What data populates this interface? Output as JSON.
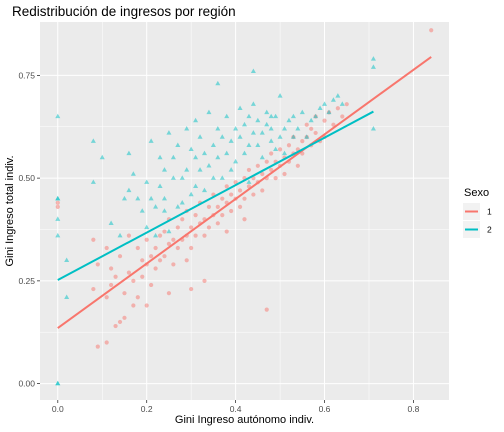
{
  "chart_data": {
    "type": "scatter",
    "title": "Redistribución de ingresos por región",
    "xlabel": "Gini Ingreso autónomo indiv.",
    "ylabel": "Gini Ingreso total indiv.",
    "xlim": [
      -0.04,
      0.88
    ],
    "ylim": [
      -0.04,
      0.88
    ],
    "x_ticks": [
      0.0,
      0.2,
      0.4,
      0.6,
      0.8
    ],
    "x_tick_labels": [
      "0.0",
      "0.2",
      "0.4",
      "0.6",
      "0.8"
    ],
    "y_ticks": [
      0.0,
      0.25,
      0.5,
      0.75
    ],
    "y_tick_labels": [
      "0.00",
      "0.25",
      "0.50",
      "0.75"
    ],
    "grid": true,
    "legend": {
      "title": "Sexo",
      "placement": "right",
      "entries": [
        {
          "label": "1",
          "color": "#F8766D"
        },
        {
          "label": "2",
          "color": "#00BFC4"
        }
      ]
    },
    "series": [
      {
        "name": "1",
        "color": "#F8766D",
        "marker": "circle",
        "points": [
          [
            0.0,
            0.44
          ],
          [
            0.0,
            0.43
          ],
          [
            0.08,
            0.23
          ],
          [
            0.08,
            0.35
          ],
          [
            0.09,
            0.09
          ],
          [
            0.09,
            0.29
          ],
          [
            0.11,
            0.21
          ],
          [
            0.11,
            0.33
          ],
          [
            0.12,
            0.24
          ],
          [
            0.12,
            0.28
          ],
          [
            0.13,
            0.14
          ],
          [
            0.13,
            0.26
          ],
          [
            0.14,
            0.15
          ],
          [
            0.14,
            0.31
          ],
          [
            0.15,
            0.16
          ],
          [
            0.15,
            0.22
          ],
          [
            0.16,
            0.27
          ],
          [
            0.16,
            0.36
          ],
          [
            0.17,
            0.19
          ],
          [
            0.17,
            0.25
          ],
          [
            0.18,
            0.33
          ],
          [
            0.18,
            0.21
          ],
          [
            0.19,
            0.3
          ],
          [
            0.19,
            0.26
          ],
          [
            0.2,
            0.29
          ],
          [
            0.2,
            0.35
          ],
          [
            0.21,
            0.24
          ],
          [
            0.21,
            0.31
          ],
          [
            0.22,
            0.33
          ],
          [
            0.22,
            0.28
          ],
          [
            0.23,
            0.36
          ],
          [
            0.23,
            0.3
          ],
          [
            0.24,
            0.37
          ],
          [
            0.24,
            0.31
          ],
          [
            0.25,
            0.34
          ],
          [
            0.25,
            0.4
          ],
          [
            0.26,
            0.35
          ],
          [
            0.26,
            0.29
          ],
          [
            0.27,
            0.38
          ],
          [
            0.27,
            0.33
          ],
          [
            0.28,
            0.4
          ],
          [
            0.28,
            0.35
          ],
          [
            0.29,
            0.36
          ],
          [
            0.29,
            0.42
          ],
          [
            0.3,
            0.38
          ],
          [
            0.3,
            0.33
          ],
          [
            0.31,
            0.41
          ],
          [
            0.31,
            0.36
          ],
          [
            0.32,
            0.39
          ],
          [
            0.32,
            0.44
          ],
          [
            0.33,
            0.4
          ],
          [
            0.33,
            0.36
          ],
          [
            0.34,
            0.43
          ],
          [
            0.34,
            0.38
          ],
          [
            0.35,
            0.41
          ],
          [
            0.35,
            0.46
          ],
          [
            0.36,
            0.43
          ],
          [
            0.36,
            0.39
          ],
          [
            0.37,
            0.45
          ],
          [
            0.37,
            0.41
          ],
          [
            0.38,
            0.44
          ],
          [
            0.38,
            0.48
          ],
          [
            0.39,
            0.42
          ],
          [
            0.39,
            0.46
          ],
          [
            0.4,
            0.45
          ],
          [
            0.4,
            0.49
          ],
          [
            0.41,
            0.43
          ],
          [
            0.41,
            0.47
          ],
          [
            0.42,
            0.5
          ],
          [
            0.42,
            0.45
          ],
          [
            0.43,
            0.48
          ],
          [
            0.43,
            0.52
          ],
          [
            0.44,
            0.46
          ],
          [
            0.44,
            0.5
          ],
          [
            0.45,
            0.49
          ],
          [
            0.45,
            0.53
          ],
          [
            0.46,
            0.47
          ],
          [
            0.46,
            0.51
          ],
          [
            0.47,
            0.54
          ],
          [
            0.47,
            0.5
          ],
          [
            0.48,
            0.52
          ],
          [
            0.48,
            0.56
          ],
          [
            0.49,
            0.5
          ],
          [
            0.49,
            0.54
          ],
          [
            0.5,
            0.53
          ],
          [
            0.5,
            0.57
          ],
          [
            0.51,
            0.51
          ],
          [
            0.51,
            0.55
          ],
          [
            0.52,
            0.58
          ],
          [
            0.52,
            0.54
          ],
          [
            0.53,
            0.56
          ],
          [
            0.53,
            0.6
          ],
          [
            0.54,
            0.57
          ],
          [
            0.54,
            0.53
          ],
          [
            0.55,
            0.59
          ],
          [
            0.55,
            0.56
          ],
          [
            0.56,
            0.6
          ],
          [
            0.56,
            0.63
          ],
          [
            0.57,
            0.58
          ],
          [
            0.57,
            0.62
          ],
          [
            0.58,
            0.65
          ],
          [
            0.58,
            0.61
          ],
          [
            0.59,
            0.59
          ],
          [
            0.6,
            0.64
          ],
          [
            0.6,
            0.6
          ],
          [
            0.61,
            0.66
          ],
          [
            0.62,
            0.63
          ],
          [
            0.63,
            0.67
          ],
          [
            0.64,
            0.65
          ],
          [
            0.65,
            0.68
          ],
          [
            0.47,
            0.18
          ],
          [
            0.29,
            0.3
          ],
          [
            0.84,
            0.86
          ],
          [
            0.11,
            0.1
          ],
          [
            0.3,
            0.23
          ],
          [
            0.33,
            0.25
          ],
          [
            0.38,
            0.37
          ],
          [
            0.42,
            0.4
          ],
          [
            0.25,
            0.22
          ],
          [
            0.2,
            0.19
          ]
        ]
      },
      {
        "name": "2",
        "color": "#00BFC4",
        "marker": "triangle",
        "points": [
          [
            0.0,
            0.65
          ],
          [
            0.0,
            0.45
          ],
          [
            0.0,
            0.45
          ],
          [
            0.0,
            0.4
          ],
          [
            0.0,
            0.36
          ],
          [
            0.0,
            0.0
          ],
          [
            0.0,
            0.0
          ],
          [
            0.02,
            0.21
          ],
          [
            0.02,
            0.3
          ],
          [
            0.08,
            0.49
          ],
          [
            0.08,
            0.59
          ],
          [
            0.1,
            0.55
          ],
          [
            0.12,
            0.39
          ],
          [
            0.14,
            0.36
          ],
          [
            0.15,
            0.45
          ],
          [
            0.16,
            0.56
          ],
          [
            0.16,
            0.47
          ],
          [
            0.17,
            0.51
          ],
          [
            0.18,
            0.45
          ],
          [
            0.19,
            0.42
          ],
          [
            0.2,
            0.49
          ],
          [
            0.2,
            0.38
          ],
          [
            0.21,
            0.59
          ],
          [
            0.21,
            0.45
          ],
          [
            0.22,
            0.43
          ],
          [
            0.22,
            0.36
          ],
          [
            0.23,
            0.55
          ],
          [
            0.23,
            0.48
          ],
          [
            0.24,
            0.45
          ],
          [
            0.24,
            0.52
          ],
          [
            0.25,
            0.61
          ],
          [
            0.25,
            0.37
          ],
          [
            0.26,
            0.5
          ],
          [
            0.26,
            0.55
          ],
          [
            0.27,
            0.43
          ],
          [
            0.27,
            0.58
          ],
          [
            0.28,
            0.5
          ],
          [
            0.28,
            0.44
          ],
          [
            0.29,
            0.62
          ],
          [
            0.29,
            0.52
          ],
          [
            0.3,
            0.57
          ],
          [
            0.3,
            0.46
          ],
          [
            0.31,
            0.55
          ],
          [
            0.31,
            0.48
          ],
          [
            0.32,
            0.6
          ],
          [
            0.32,
            0.52
          ],
          [
            0.33,
            0.56
          ],
          [
            0.33,
            0.47
          ],
          [
            0.34,
            0.66
          ],
          [
            0.34,
            0.53
          ],
          [
            0.35,
            0.58
          ],
          [
            0.35,
            0.5
          ],
          [
            0.36,
            0.62
          ],
          [
            0.36,
            0.55
          ],
          [
            0.37,
            0.6
          ],
          [
            0.37,
            0.5
          ],
          [
            0.38,
            0.65
          ],
          [
            0.38,
            0.56
          ],
          [
            0.39,
            0.59
          ],
          [
            0.39,
            0.52
          ],
          [
            0.4,
            0.62
          ],
          [
            0.4,
            0.54
          ],
          [
            0.41,
            0.6
          ],
          [
            0.41,
            0.67
          ],
          [
            0.42,
            0.56
          ],
          [
            0.42,
            0.63
          ],
          [
            0.43,
            0.58
          ],
          [
            0.43,
            0.65
          ],
          [
            0.44,
            0.61
          ],
          [
            0.44,
            0.68
          ],
          [
            0.45,
            0.58
          ],
          [
            0.45,
            0.64
          ],
          [
            0.46,
            0.61
          ],
          [
            0.46,
            0.55
          ],
          [
            0.47,
            0.63
          ],
          [
            0.47,
            0.66
          ],
          [
            0.48,
            0.59
          ],
          [
            0.48,
            0.62
          ],
          [
            0.49,
            0.57
          ],
          [
            0.49,
            0.65
          ],
          [
            0.5,
            0.6
          ],
          [
            0.5,
            0.7
          ],
          [
            0.51,
            0.62
          ],
          [
            0.51,
            0.56
          ],
          [
            0.52,
            0.64
          ],
          [
            0.53,
            0.6
          ],
          [
            0.53,
            0.65
          ],
          [
            0.54,
            0.62
          ],
          [
            0.55,
            0.66
          ],
          [
            0.56,
            0.6
          ],
          [
            0.57,
            0.64
          ],
          [
            0.58,
            0.65
          ],
          [
            0.59,
            0.67
          ],
          [
            0.6,
            0.68
          ],
          [
            0.61,
            0.66
          ],
          [
            0.62,
            0.69
          ],
          [
            0.63,
            0.7
          ],
          [
            0.64,
            0.68
          ],
          [
            0.71,
            0.79
          ],
          [
            0.71,
            0.77
          ],
          [
            0.71,
            0.62
          ],
          [
            0.44,
            0.76
          ],
          [
            0.48,
            0.65
          ],
          [
            0.36,
            0.73
          ],
          [
            0.24,
            0.42
          ],
          [
            0.43,
            0.49
          ],
          [
            0.31,
            0.64
          ]
        ]
      }
    ],
    "fit_lines": [
      {
        "series": "1",
        "color": "#F8766D",
        "x": [
          0.0,
          0.84
        ],
        "y": [
          0.135,
          0.795
        ]
      },
      {
        "series": "2",
        "color": "#00BFC4",
        "x": [
          0.0,
          0.71
        ],
        "y": [
          0.252,
          0.662
        ]
      }
    ]
  }
}
